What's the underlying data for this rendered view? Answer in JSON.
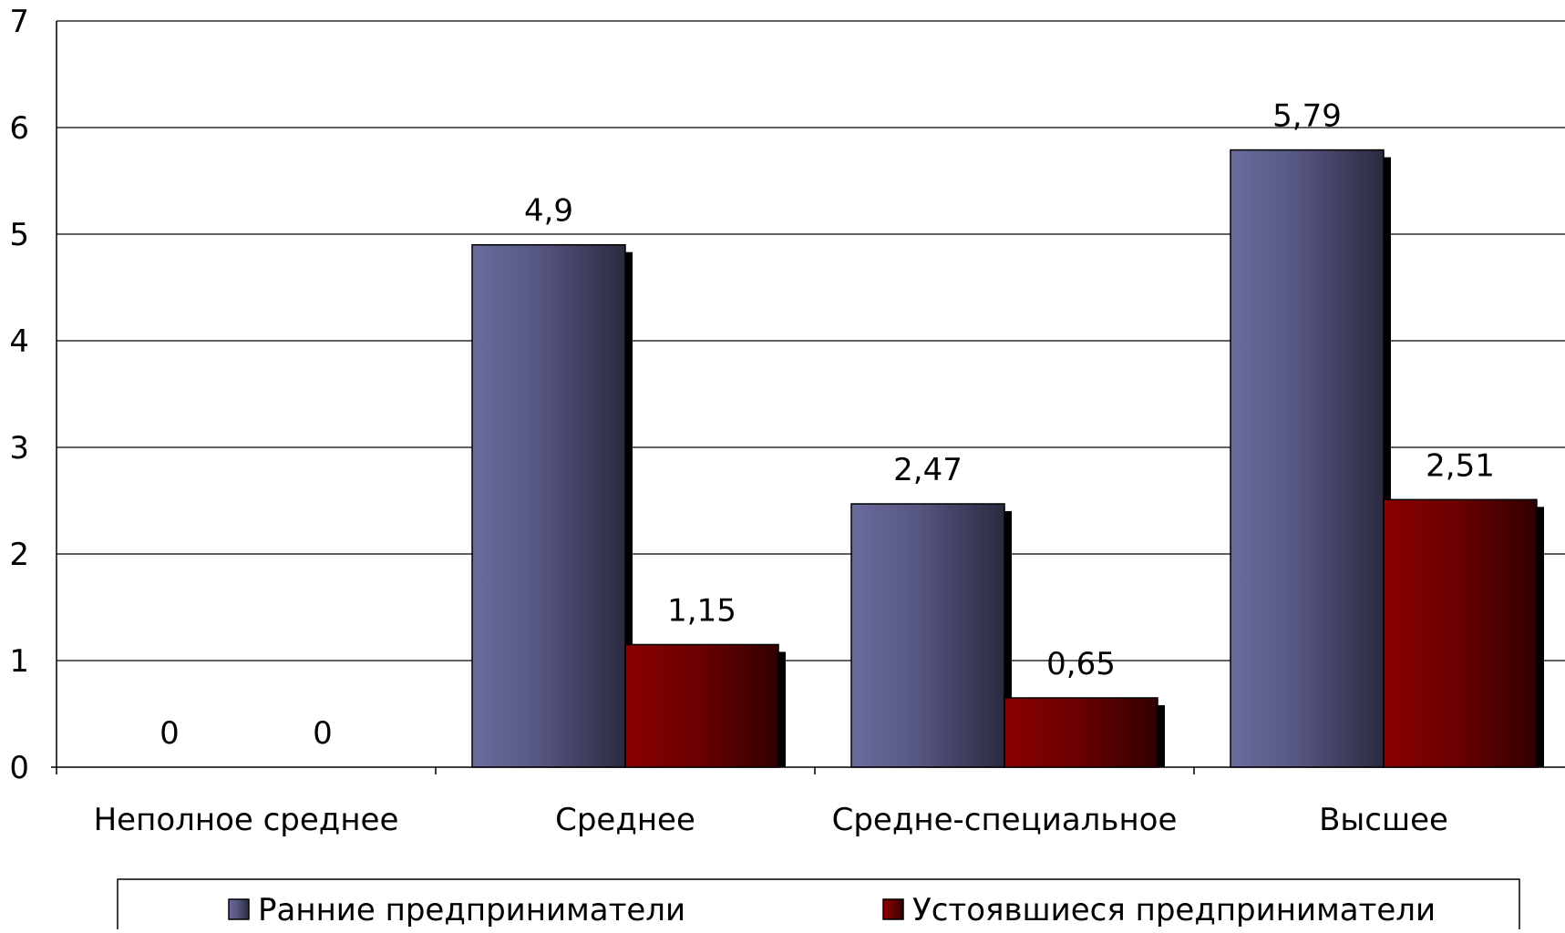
{
  "chart_data": {
    "type": "bar",
    "categories": [
      "Неполное среднее",
      "Среднее",
      "Средне-специальное",
      "Высшее"
    ],
    "series": [
      {
        "name": "Ранние предприниматели",
        "values": [
          0,
          4.9,
          2.47,
          5.79
        ],
        "labels": [
          "0",
          "4,9",
          "2,47",
          "5,79"
        ],
        "color": "#666699"
      },
      {
        "name": "Устоявшиеся предприниматели",
        "values": [
          0,
          1.15,
          0.65,
          2.51
        ],
        "labels": [
          "0",
          "1,15",
          "0,65",
          "2,51"
        ],
        "color": "#800000"
      }
    ],
    "ylim": [
      0,
      7
    ],
    "yticks": [
      "0",
      "1",
      "2",
      "3",
      "4",
      "5",
      "6",
      "7"
    ],
    "grid": true,
    "legend_position": "bottom"
  }
}
